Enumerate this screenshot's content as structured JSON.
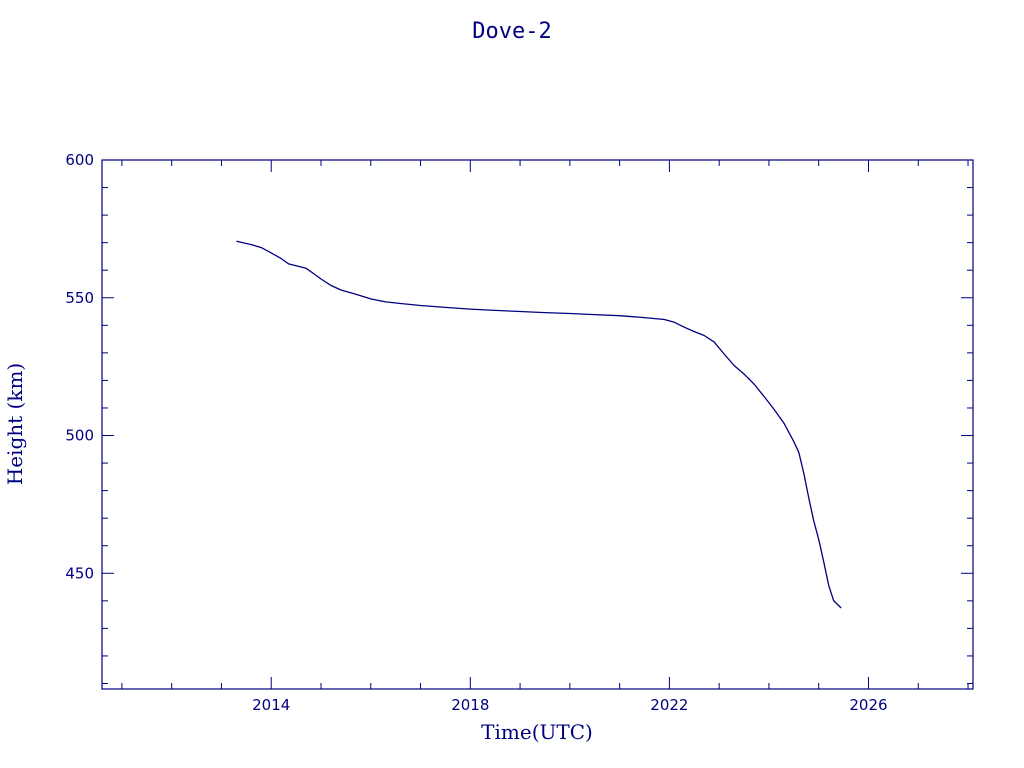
{
  "chart_data": {
    "type": "line",
    "title": "Dove-2",
    "xlabel": "Time(UTC)",
    "ylabel": "Height (km)",
    "xlim": [
      2010.6,
      2028.1
    ],
    "ylim": [
      408,
      600
    ],
    "x_major_ticks": [
      2014,
      2018,
      2022,
      2026
    ],
    "x_minor_step": 1,
    "y_major_ticks": [
      450,
      500,
      550,
      600
    ],
    "y_minor_step": 10,
    "x_tick_labels": [
      "2014",
      "2018",
      "2022",
      "2026"
    ],
    "y_tick_labels": [
      "450",
      "500",
      "550",
      "600"
    ],
    "grid": false,
    "series": [
      {
        "x": [
          2013.3,
          2013.6,
          2013.8,
          2014.0,
          2014.2,
          2014.35,
          2014.5,
          2014.7,
          2014.85,
          2015.0,
          2015.2,
          2015.4,
          2015.7,
          2016.0,
          2016.3,
          2016.6,
          2017.0,
          2017.5,
          2018.0,
          2018.5,
          2019.0,
          2019.5,
          2020.0,
          2020.5,
          2021.0,
          2021.5,
          2021.9,
          2022.1,
          2022.3,
          2022.5,
          2022.7,
          2022.9,
          2023.1,
          2023.3,
          2023.5,
          2023.7,
          2023.9,
          2024.1,
          2024.3,
          2024.5,
          2024.6,
          2024.7,
          2024.8,
          2024.9,
          2025.0,
          2025.1,
          2025.2,
          2025.3,
          2025.4,
          2025.45
        ],
        "y": [
          570.5,
          569.3,
          568.2,
          566.3,
          564.2,
          562.3,
          561.6,
          560.7,
          558.8,
          556.8,
          554.5,
          552.8,
          551.3,
          549.6,
          548.5,
          547.9,
          547.2,
          546.5,
          545.9,
          545.4,
          545.0,
          544.6,
          544.3,
          543.9,
          543.5,
          542.8,
          542.1,
          541.1,
          539.3,
          537.7,
          536.3,
          533.9,
          529.6,
          525.4,
          522.3,
          518.7,
          514.2,
          509.6,
          504.5,
          497.8,
          493.9,
          486.3,
          477.3,
          469.1,
          462.3,
          454.2,
          445.6,
          440.1,
          438.3,
          437.4
        ]
      }
    ]
  }
}
